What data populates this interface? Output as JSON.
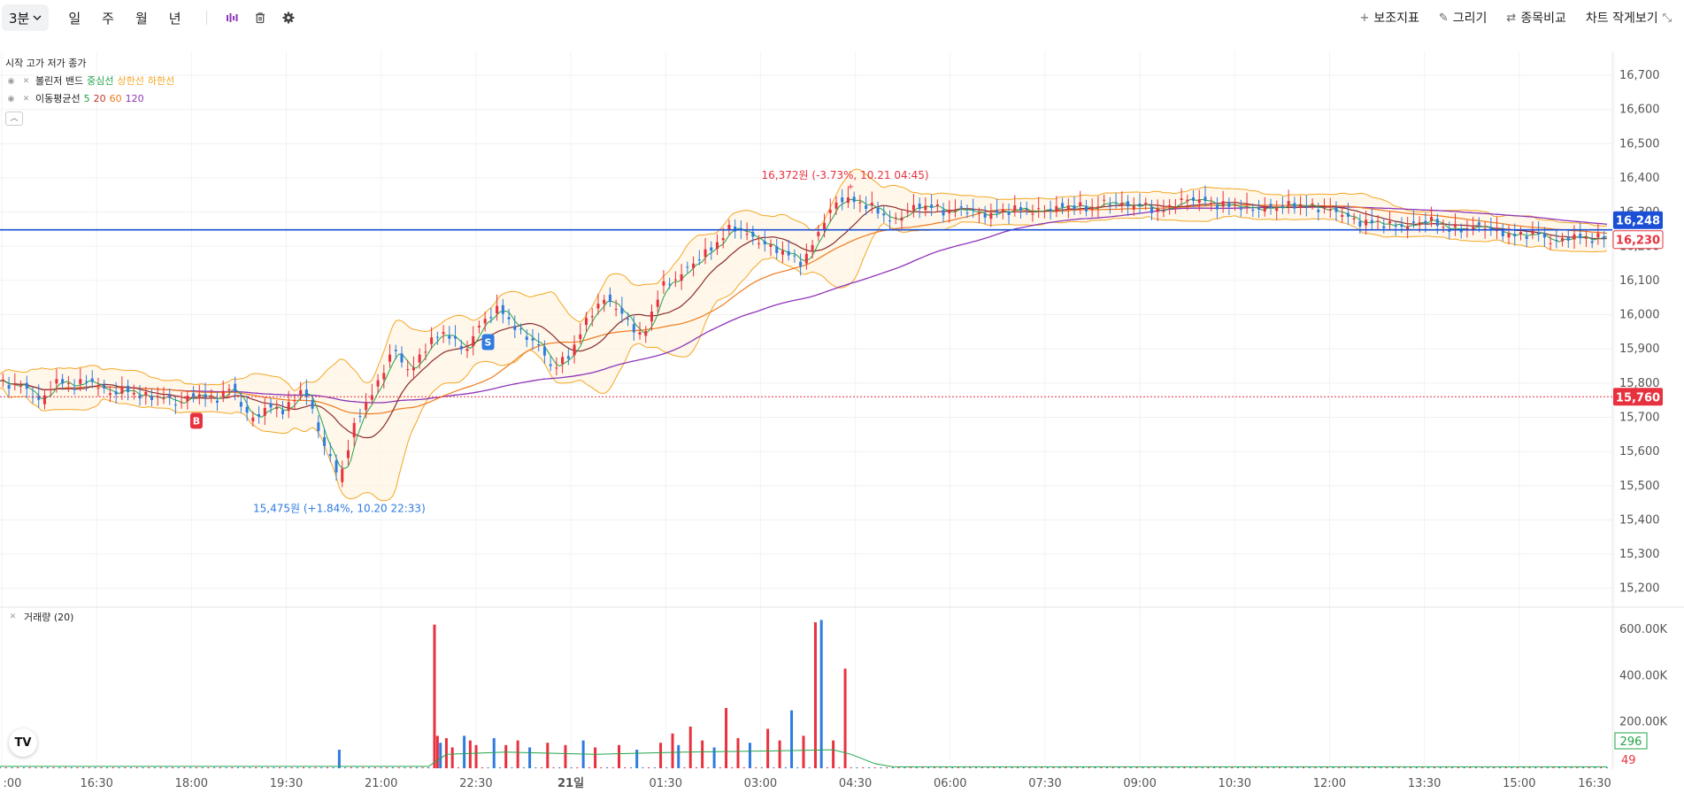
{
  "toolbar": {
    "interval": "3분",
    "periods": [
      "일",
      "주",
      "월",
      "년"
    ],
    "indicator_label": "보조지표",
    "draw_label": "그리기",
    "compare_label": "종목비교",
    "small_view_label": "차트 작게보기"
  },
  "legend": {
    "ohlc_labels": "시작  고가  저가  종가",
    "bollinger": {
      "name": "볼린저 밴드",
      "center": "중심선",
      "upper": "상한선",
      "lower": "하한선"
    },
    "ma": {
      "name": "이동평균선",
      "periods": [
        "5",
        "20",
        "60",
        "120"
      ]
    }
  },
  "volume_legend": "거래량 (20)",
  "colors": {
    "up": "#e8313e",
    "down": "#2f7bdf",
    "bb_center": "#23a34a",
    "bb_band": "#f5a623",
    "ma5": "#23a34a",
    "ma20": "#8b2c2c",
    "ma60": "#f07b1e",
    "ma120": "#8e35b8",
    "current_line": "#1a4fd6",
    "vol_ma": "#23a34a"
  },
  "icons": [
    "chevron-down-icon",
    "indicator-icon",
    "trash-icon",
    "gear-icon",
    "plus-icon",
    "pencil-icon",
    "compare-icon",
    "shrink-icon",
    "eye-icon",
    "close-icon",
    "chevron-up-icon"
  ],
  "chart_data": {
    "type": "candlestick",
    "x_ticks": [
      ":00",
      "16:30",
      "18:00",
      "19:30",
      "21:00",
      "22:30",
      "21일",
      "01:30",
      "03:00",
      "04:30",
      "06:00",
      "07:30",
      "09:00",
      "10:30",
      "12:00",
      "13:30",
      "15:00",
      "16:30"
    ],
    "y_ticks": [
      "16,700",
      "16,600",
      "16,500",
      "16,400",
      "16,300",
      "16,200",
      "16,100",
      "16,000",
      "15,900",
      "15,800",
      "15,700",
      "15,600",
      "15,500",
      "15,400",
      "15,300",
      "15,200"
    ],
    "ylim": [
      15150,
      16770
    ],
    "price_path": [
      [
        0,
        15800
      ],
      [
        8,
        15790
      ],
      [
        14,
        15740
      ],
      [
        18,
        15810
      ],
      [
        24,
        15790
      ],
      [
        30,
        15810
      ],
      [
        36,
        15770
      ],
      [
        42,
        15780
      ],
      [
        48,
        15760
      ],
      [
        54,
        15760
      ],
      [
        60,
        15740
      ],
      [
        66,
        15770
      ],
      [
        72,
        15750
      ],
      [
        78,
        15790
      ],
      [
        84,
        15690
      ],
      [
        90,
        15730
      ],
      [
        96,
        15720
      ],
      [
        102,
        15790
      ],
      [
        108,
        15640
      ],
      [
        114,
        15520
      ],
      [
        120,
        15700
      ],
      [
        126,
        15780
      ],
      [
        132,
        15900
      ],
      [
        138,
        15830
      ],
      [
        144,
        15920
      ],
      [
        150,
        15950
      ],
      [
        156,
        15890
      ],
      [
        162,
        15980
      ],
      [
        168,
        16020
      ],
      [
        174,
        15950
      ],
      [
        180,
        15920
      ],
      [
        186,
        15840
      ],
      [
        192,
        15890
      ],
      [
        198,
        16000
      ],
      [
        204,
        16050
      ],
      [
        210,
        15990
      ],
      [
        216,
        15930
      ],
      [
        222,
        16080
      ],
      [
        228,
        16110
      ],
      [
        234,
        16160
      ],
      [
        240,
        16200
      ],
      [
        246,
        16260
      ],
      [
        252,
        16230
      ],
      [
        258,
        16200
      ],
      [
        264,
        16180
      ],
      [
        270,
        16150
      ],
      [
        276,
        16260
      ],
      [
        282,
        16340
      ],
      [
        288,
        16330
      ],
      [
        294,
        16310
      ],
      [
        300,
        16270
      ],
      [
        306,
        16310
      ],
      [
        312,
        16320
      ],
      [
        318,
        16300
      ],
      [
        324,
        16310
      ],
      [
        330,
        16290
      ],
      [
        336,
        16300
      ],
      [
        342,
        16310
      ],
      [
        348,
        16300
      ],
      [
        354,
        16310
      ],
      [
        360,
        16320
      ],
      [
        366,
        16310
      ],
      [
        372,
        16330
      ],
      [
        378,
        16320
      ],
      [
        384,
        16320
      ],
      [
        390,
        16300
      ],
      [
        396,
        16330
      ],
      [
        402,
        16340
      ],
      [
        408,
        16320
      ],
      [
        414,
        16320
      ],
      [
        420,
        16310
      ],
      [
        426,
        16310
      ],
      [
        432,
        16320
      ],
      [
        438,
        16320
      ],
      [
        444,
        16310
      ],
      [
        450,
        16300
      ],
      [
        456,
        16270
      ],
      [
        462,
        16270
      ],
      [
        468,
        16260
      ],
      [
        474,
        16260
      ],
      [
        480,
        16280
      ],
      [
        486,
        16250
      ],
      [
        492,
        16250
      ],
      [
        498,
        16260
      ],
      [
        504,
        16240
      ],
      [
        510,
        16230
      ],
      [
        516,
        16240
      ],
      [
        522,
        16210
      ],
      [
        528,
        16230
      ],
      [
        534,
        16220
      ],
      [
        540,
        16230
      ]
    ],
    "x_max": 540,
    "current_price": "16,248",
    "last_close": "16,230",
    "prev_close_line": "15,760",
    "high_annotation": "16,372원 (-3.73%, 10.21 04:45)",
    "low_annotation": "15,475원 (+1.84%, 10.20 22:33)",
    "buy_marker": "B",
    "sell_marker": "S",
    "volume_ticks": [
      "600.00K",
      "400.00K",
      "200.00K"
    ],
    "volume_ylim": [
      0,
      680000
    ],
    "volume_ma_label": "296",
    "volume_last_label": "49",
    "volume_spikes": [
      [
        114,
        80000
      ],
      [
        146,
        620000
      ],
      [
        147,
        140000
      ],
      [
        148,
        110000
      ],
      [
        150,
        130000
      ],
      [
        152,
        90000
      ],
      [
        156,
        140000
      ],
      [
        158,
        120000
      ],
      [
        160,
        100000
      ],
      [
        166,
        130000
      ],
      [
        170,
        100000
      ],
      [
        174,
        120000
      ],
      [
        178,
        90000
      ],
      [
        184,
        110000
      ],
      [
        190,
        100000
      ],
      [
        196,
        120000
      ],
      [
        200,
        90000
      ],
      [
        208,
        100000
      ],
      [
        214,
        80000
      ],
      [
        222,
        110000
      ],
      [
        226,
        150000
      ],
      [
        228,
        100000
      ],
      [
        232,
        180000
      ],
      [
        236,
        120000
      ],
      [
        240,
        90000
      ],
      [
        244,
        260000
      ],
      [
        248,
        130000
      ],
      [
        252,
        110000
      ],
      [
        258,
        170000
      ],
      [
        262,
        120000
      ],
      [
        266,
        250000
      ],
      [
        270,
        140000
      ],
      [
        274,
        630000
      ],
      [
        276,
        640000
      ],
      [
        280,
        120000
      ],
      [
        284,
        430000
      ]
    ]
  }
}
